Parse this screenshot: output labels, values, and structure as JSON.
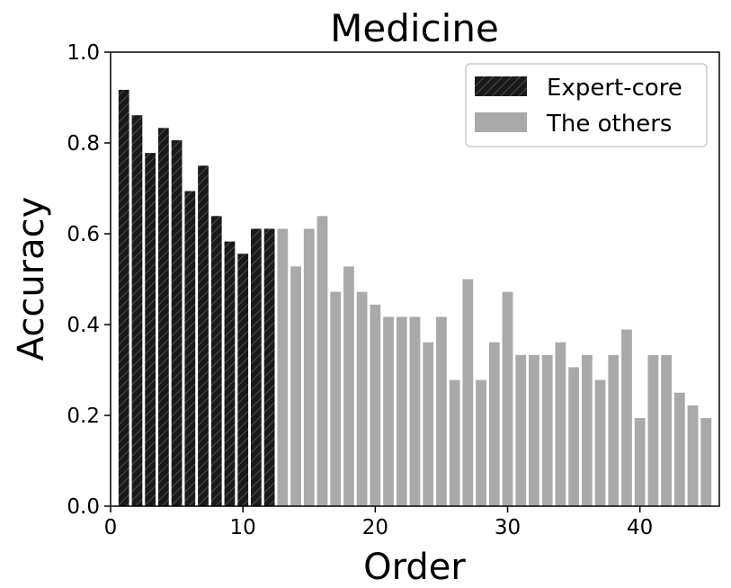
{
  "chart_data": {
    "type": "bar",
    "title": "Medicine",
    "xlabel": "Order",
    "ylabel": "Accuracy",
    "xlim": [
      0,
      46
    ],
    "ylim": [
      0,
      1.0
    ],
    "xticks": [
      0,
      10,
      20,
      30,
      40
    ],
    "xtick_labels": [
      "0",
      "10",
      "20",
      "30",
      "40"
    ],
    "yticks": [
      0.0,
      0.2,
      0.4,
      0.6,
      0.8,
      1.0
    ],
    "ytick_labels": [
      "0.0",
      "0.2",
      "0.4",
      "0.6",
      "0.8",
      "1.0"
    ],
    "grid": false,
    "legend_position": "top-right",
    "series": [
      {
        "name": "Expert-core",
        "color": "#1a1a1a",
        "hatch": "diagonal",
        "x": [
          1,
          2,
          3,
          4,
          5,
          6,
          7,
          8,
          9,
          10,
          11,
          12
        ],
        "values": [
          0.917,
          0.861,
          0.778,
          0.833,
          0.806,
          0.694,
          0.75,
          0.639,
          0.583,
          0.556,
          0.611,
          0.611
        ]
      },
      {
        "name": "The others",
        "color": "#a9a9a9",
        "hatch": "none",
        "x": [
          13,
          14,
          15,
          16,
          17,
          18,
          19,
          20,
          21,
          22,
          23,
          24,
          25,
          26,
          27,
          28,
          29,
          30,
          31,
          32,
          33,
          34,
          35,
          36,
          37,
          38,
          39,
          40,
          41,
          42,
          43,
          44,
          45
        ],
        "values": [
          0.611,
          0.528,
          0.611,
          0.639,
          0.472,
          0.528,
          0.472,
          0.444,
          0.417,
          0.417,
          0.417,
          0.361,
          0.417,
          0.278,
          0.5,
          0.278,
          0.361,
          0.472,
          0.333,
          0.333,
          0.333,
          0.361,
          0.306,
          0.333,
          0.278,
          0.333,
          0.389,
          0.194,
          0.333,
          0.333,
          0.25,
          0.222,
          0.194
        ]
      }
    ]
  }
}
